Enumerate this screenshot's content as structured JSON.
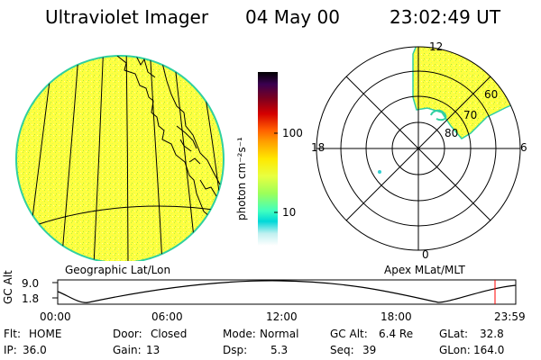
{
  "header": {
    "instrument": "Ultraviolet Imager",
    "date": "04 May 00",
    "time": "23:02:49 UT"
  },
  "left_panel": {
    "caption": "Geographic Lat/Lon"
  },
  "colorbar": {
    "unit_label": "photon cm⁻²s⁻¹",
    "tick_labels": [
      "100",
      "10"
    ],
    "colors": [
      "#000000",
      "#3a0050",
      "#7a0020",
      "#d40000",
      "#ff5a00",
      "#ff9e00",
      "#ffe800",
      "#e8ff40",
      "#9cff5a",
      "#40ffc0",
      "#00d8d8",
      "#c0f0f0",
      "#ffffff"
    ]
  },
  "right_panel": {
    "caption": "Apex MLat/MLT",
    "mlt_labels": {
      "top": "12",
      "bottom": "0",
      "left": "18",
      "right": "6"
    },
    "mlat_labels": [
      "60",
      "70",
      "80"
    ]
  },
  "altitude_plot": {
    "y_title": "GC Alt",
    "y_ticks": [
      "9.0",
      "1.8"
    ],
    "x_ticks": [
      "00:00",
      "06:00",
      "12:00",
      "18:00",
      "23:59"
    ]
  },
  "status": {
    "row1": [
      {
        "key": "Flt:",
        "value": "HOME"
      },
      {
        "key": "Door:",
        "value": "Closed"
      },
      {
        "key": "Mode:",
        "value": "Normal"
      },
      {
        "key": "GC Alt:",
        "value": "6.4 Re"
      },
      {
        "key": "GLat:",
        "value": "32.8"
      }
    ],
    "row2": [
      {
        "key": "IP:",
        "value": "36.0"
      },
      {
        "key": "Gain:",
        "value": "13"
      },
      {
        "key": "Dsp:",
        "value": "5.3"
      },
      {
        "key": "Seq:",
        "value": "39"
      },
      {
        "key": "GLon:",
        "value": "164.0"
      }
    ]
  },
  "colors": {
    "image_fill": "#ffff40",
    "image_speckle": "#b8f040",
    "image_rim": "#30d0a0",
    "current_time_marker": "#ff0000"
  }
}
